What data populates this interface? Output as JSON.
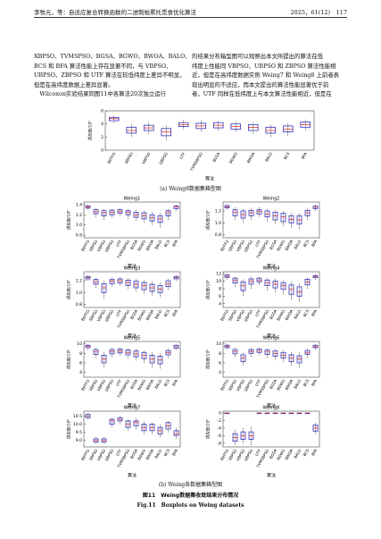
{
  "header": {
    "left": "李牧元，等：自适应复合转换函数的二进制帕累托觅食优化算法",
    "right": "2025，61(12)　117"
  },
  "body": {
    "left": [
      "XBPSO、TVMSPSO、BGSA、BGWO、BWOA、BALO、",
      "BCS 和 BFA 算法性能上存在显著不同，与 VBPSO、",
      "UBPSO、ZBPSO 和 UTF 算法在较低纬度上差异不明显，",
      "但是在高纬度数据上差异显著。",
      "　Wilcoxon实验结果同图11中各算法20次独立运行"
    ],
    "right": [
      "的结果分布箱型图可以观察出本文所提出的算法在低",
      "纬度上性能同 VBPSO、UBPSO 和 ZBPSO 算法性能相",
      "近，但是在高纬度数据实例 Weing7 和 Weing8 上前者表",
      "现出明显的不适应，而本文提出的算法性能显著优于前",
      "者，UTF 同样在低纬度上与本文算法性能相近，但是在"
    ]
  },
  "figure": {
    "caption_a": "(a) Weing8数据集箱型图",
    "caption_b": "(b) Weing各数据集箱型图",
    "caption_cn": "图11　Weing数据集收敛结果分布情况",
    "caption_en": "Fig.11　Boxplots on Weing datasets"
  },
  "chart_data": [
    {
      "type": "box",
      "ylabel": "适应度/10⁵",
      "xlabel": "算法",
      "color": "#3333bb",
      "categories": [
        "BEFFO",
        "SBPSO",
        "VBPSO",
        "QBPSO",
        "UTF",
        "TVMSBPSO",
        "BGSA",
        "BGWO",
        "BWOA",
        "BALO",
        "BCS",
        "BFA"
      ],
      "ylim": [
        0,
        6
      ],
      "yticks": [
        0,
        2,
        4,
        6
      ],
      "boxes": [
        [
          4.2,
          4.5,
          4.8,
          5.0,
          5.3
        ],
        [
          2.0,
          2.6,
          3.0,
          3.5,
          4.0
        ],
        [
          2.5,
          3.0,
          3.4,
          3.8,
          4.3
        ],
        [
          1.5,
          2.2,
          2.8,
          3.3,
          3.8
        ],
        [
          3.2,
          3.6,
          3.9,
          4.2,
          4.6
        ],
        [
          2.8,
          3.3,
          3.7,
          4.1,
          4.6
        ],
        [
          3.0,
          3.4,
          3.8,
          4.2,
          4.5
        ],
        [
          2.8,
          3.2,
          3.6,
          4.0,
          4.4
        ],
        [
          2.5,
          3.0,
          3.5,
          3.9,
          4.3
        ],
        [
          2.0,
          2.6,
          3.0,
          3.5,
          3.9
        ],
        [
          2.2,
          2.8,
          3.2,
          3.7,
          4.1
        ],
        [
          3.0,
          3.5,
          3.9,
          4.3,
          4.7
        ]
      ]
    },
    {
      "type": "box",
      "title": "Weing1",
      "ylabel": "适应度/10⁵",
      "xlabel": "算法",
      "color": "#3333bb",
      "categories": [
        "BEFFO",
        "SBPSO",
        "VBPSO",
        "QBPSO",
        "UTF",
        "TVMSBPSO",
        "BGSA",
        "BGWO",
        "BWOA",
        "BALO",
        "BCS",
        "BFA"
      ],
      "ylim": [
        0.75,
        1.45
      ],
      "yticks": [
        0.8,
        {
          "value": 1,
          "label": "1.0"
        },
        1.2,
        1.4
      ],
      "boxes": [
        [
          1.3,
          1.33,
          1.35,
          1.37,
          1.4
        ],
        [
          1.15,
          1.22,
          1.26,
          1.3,
          1.33
        ],
        [
          1.1,
          1.18,
          1.24,
          1.28,
          1.32
        ],
        [
          1.15,
          1.2,
          1.25,
          1.29,
          1.32
        ],
        [
          1.18,
          1.23,
          1.27,
          1.3,
          1.33
        ],
        [
          1.12,
          1.2,
          1.25,
          1.28,
          1.32
        ],
        [
          1.08,
          1.15,
          1.2,
          1.25,
          1.3
        ],
        [
          1.05,
          1.12,
          1.18,
          1.24,
          1.28
        ],
        [
          1.0,
          1.08,
          1.14,
          1.2,
          1.26
        ],
        [
          0.95,
          1.05,
          1.12,
          1.18,
          1.24
        ],
        [
          1.1,
          1.18,
          1.24,
          1.28,
          1.31
        ],
        [
          1.28,
          1.32,
          1.35,
          1.37,
          1.4
        ]
      ]
    },
    {
      "type": "box",
      "title": "Weing2",
      "ylabel": "适应度/10⁵",
      "xlabel": "算法",
      "color": "#3333bb",
      "categories": [
        "BEFFO",
        "SBPSO",
        "VBPSO",
        "QBPSO",
        "UTF",
        "TVMSBPSO",
        "BGSA",
        "BGWO",
        "BWOA",
        "BALO",
        "BCS",
        "BFA"
      ],
      "ylim": [
        0.75,
        1.35
      ],
      "yticks": [
        0.8,
        {
          "value": 1,
          "label": "1.0"
        },
        1.2
      ],
      "boxes": [
        [
          1.22,
          1.25,
          1.27,
          1.29,
          1.31
        ],
        [
          1.05,
          1.12,
          1.18,
          1.22,
          1.26
        ],
        [
          1.0,
          1.08,
          1.14,
          1.2,
          1.24
        ],
        [
          1.05,
          1.12,
          1.17,
          1.21,
          1.25
        ],
        [
          1.1,
          1.15,
          1.19,
          1.22,
          1.26
        ],
        [
          1.02,
          1.1,
          1.15,
          1.2,
          1.24
        ],
        [
          0.98,
          1.05,
          1.12,
          1.18,
          1.22
        ],
        [
          0.95,
          1.02,
          1.1,
          1.16,
          1.2
        ],
        [
          0.92,
          1.0,
          1.06,
          1.12,
          1.18
        ],
        [
          0.9,
          0.98,
          1.05,
          1.12,
          1.17
        ],
        [
          1.05,
          1.12,
          1.17,
          1.21,
          1.25
        ],
        [
          1.2,
          1.24,
          1.26,
          1.28,
          1.31
        ]
      ]
    },
    {
      "type": "box",
      "title": "Weing3",
      "ylabel": "适应度/10⁵",
      "xlabel": "算法",
      "color": "#3333bb",
      "categories": [
        "BEFFO",
        "SBPSO",
        "VBPSO",
        "QBPSO",
        "UTF",
        "TVMSBPSO",
        "BGSA",
        "BGWO",
        "BWOA",
        "BALO",
        "BCS",
        "BFA"
      ],
      "ylim": [
        0.75,
        1.35
      ],
      "yticks": [
        0.8,
        {
          "value": 1,
          "label": "1.0"
        },
        1.2
      ],
      "boxes": [
        [
          1.2,
          1.23,
          1.25,
          1.27,
          1.3
        ],
        [
          1.08,
          1.14,
          1.18,
          1.22,
          1.25
        ],
        [
          0.9,
          1.0,
          1.08,
          1.15,
          1.2
        ],
        [
          1.1,
          1.15,
          1.19,
          1.22,
          1.25
        ],
        [
          1.12,
          1.16,
          1.2,
          1.23,
          1.26
        ],
        [
          1.06,
          1.12,
          1.17,
          1.21,
          1.24
        ],
        [
          1.02,
          1.08,
          1.14,
          1.19,
          1.23
        ],
        [
          0.98,
          1.05,
          1.12,
          1.17,
          1.21
        ],
        [
          0.95,
          1.02,
          1.08,
          1.14,
          1.19
        ],
        [
          0.92,
          1.0,
          1.06,
          1.12,
          1.17
        ],
        [
          1.05,
          1.1,
          1.15,
          1.2,
          1.23
        ],
        [
          1.2,
          1.23,
          1.25,
          1.27,
          1.3
        ]
      ]
    },
    {
      "type": "box",
      "title": "Weing4",
      "ylabel": "适应度/10⁵",
      "xlabel": "算法",
      "color": "#3333bb",
      "categories": [
        "BEFFO",
        "SBPSO",
        "VBPSO",
        "QBPSO",
        "UTF",
        "TVMSBPSO",
        "BGSA",
        "BGWO",
        "BWOA",
        "BALO",
        "BCS",
        "BFA"
      ],
      "ylim": [
        3,
        12.5
      ],
      "yticks": [
        4,
        6,
        8,
        10,
        12
      ],
      "boxes": [
        [
          10.5,
          11,
          11.3,
          11.6,
          12
        ],
        [
          8.5,
          9.5,
          10.2,
          10.8,
          11.3
        ],
        [
          6,
          7.5,
          8.8,
          9.8,
          10.6
        ],
        [
          8,
          9.2,
          10,
          10.6,
          11.2
        ],
        [
          9,
          9.8,
          10.3,
          10.8,
          11.2
        ],
        [
          7.5,
          8.8,
          9.6,
          10.3,
          11
        ],
        [
          7,
          8.2,
          9.2,
          10,
          10.8
        ],
        [
          6.5,
          7.8,
          8.8,
          9.6,
          10.4
        ],
        [
          5,
          6.5,
          7.8,
          9,
          10
        ],
        [
          4.5,
          6,
          7.2,
          8.5,
          9.5
        ],
        [
          8,
          9,
          9.8,
          10.5,
          11
        ],
        [
          10.4,
          10.9,
          11.2,
          11.5,
          11.9
        ]
      ]
    },
    {
      "type": "box",
      "title": "Weing5",
      "ylabel": "适应度/10⁵",
      "xlabel": "算法",
      "color": "#3333bb",
      "categories": [
        "BEFFO",
        "SBPSO",
        "VBPSO",
        "QBPSO",
        "UTF",
        "TVMSBPSO",
        "BGSA",
        "BGWO",
        "BWOA",
        "BALO",
        "BCS",
        "BFA"
      ],
      "ylim": [
        3,
        10.5
      ],
      "yticks": [
        4,
        6,
        8,
        10
      ],
      "boxes": [
        [
          8.8,
          9.2,
          9.5,
          9.7,
          10
        ],
        [
          7,
          7.8,
          8.3,
          8.8,
          9.2
        ],
        [
          5,
          6,
          6.8,
          7.6,
          8.3
        ],
        [
          7.2,
          7.9,
          8.4,
          8.8,
          9.2
        ],
        [
          7.6,
          8.1,
          8.5,
          8.9,
          9.2
        ],
        [
          7,
          7.7,
          8.2,
          8.7,
          9.1
        ],
        [
          6.5,
          7.3,
          7.9,
          8.5,
          9
        ],
        [
          6,
          6.9,
          7.6,
          8.2,
          8.7
        ],
        [
          5,
          6,
          6.8,
          7.6,
          8.3
        ],
        [
          4.8,
          5.8,
          6.6,
          7.4,
          8.1
        ],
        [
          7,
          7.7,
          8.2,
          8.6,
          9
        ],
        [
          8.7,
          9.1,
          9.4,
          9.7,
          10
        ]
      ]
    },
    {
      "type": "box",
      "title": "Weing6",
      "ylabel": "适应度/10⁵",
      "xlabel": "算法",
      "color": "#3333bb",
      "categories": [
        "BEFFO",
        "SBPSO",
        "VBPSO",
        "QBPSO",
        "UTF",
        "TVMSBPSO",
        "BGSA",
        "BGWO",
        "BWOA",
        "BALO",
        "BCS",
        "BFA"
      ],
      "ylim": [
        3,
        10.5
      ],
      "yticks": [
        4,
        6,
        8,
        10
      ],
      "boxes": [
        [
          8.9,
          9.2,
          9.5,
          9.7,
          10
        ],
        [
          7.2,
          7.9,
          8.4,
          8.8,
          9.2
        ],
        [
          5.5,
          6.3,
          7,
          7.7,
          8.3
        ],
        [
          7.3,
          8,
          8.4,
          8.8,
          9.2
        ],
        [
          7.6,
          8.2,
          8.6,
          8.9,
          9.3
        ],
        [
          7,
          7.8,
          8.3,
          8.7,
          9.1
        ],
        [
          6.6,
          7.4,
          8,
          8.5,
          9
        ],
        [
          6.2,
          7,
          7.6,
          8.2,
          8.7
        ],
        [
          5.4,
          6.3,
          7,
          7.7,
          8.4
        ],
        [
          5,
          6,
          6.8,
          7.5,
          8.2
        ],
        [
          7,
          7.8,
          8.2,
          8.6,
          9
        ],
        [
          8.8,
          9.2,
          9.4,
          9.7,
          10
        ]
      ]
    },
    {
      "type": "box",
      "title": "Weing7",
      "ylabel": "适应度/10⁵",
      "xlabel": "算法",
      "color": "#3333bb",
      "categories": [
        "BEFFO",
        "SBPSO",
        "VBPSO",
        "QBPSO",
        "UTF",
        "TVMSBPSO",
        "BGSA",
        "BGWO",
        "BWOA",
        "BALO",
        "BCS",
        "BFA"
      ],
      "ylim": [
        8.6,
        10.8
      ],
      "yticks": [
        {
          "value": 9,
          "label": "9.0"
        },
        9.5,
        {
          "value": 10,
          "label": "10.0"
        },
        10.5
      ],
      "boxes": [
        [
          10.3,
          10.4,
          10.5,
          10.6,
          10.7
        ],
        [
          8.8,
          8.9,
          9,
          9.1,
          9.2
        ],
        [
          8.8,
          8.9,
          9,
          9.1,
          9.2
        ],
        [
          9.8,
          10,
          10.2,
          10.3,
          10.4
        ],
        [
          10,
          10.2,
          10.3,
          10.4,
          10.5
        ],
        [
          9.6,
          9.8,
          10,
          10.2,
          10.3
        ],
        [
          9.7,
          9.9,
          10.1,
          10.2,
          10.4
        ],
        [
          9.4,
          9.6,
          9.8,
          10,
          10.2
        ],
        [
          9.4,
          9.6,
          9.8,
          10,
          10.1
        ],
        [
          9.2,
          9.4,
          9.6,
          9.8,
          10
        ],
        [
          9.5,
          9.7,
          9.9,
          10.1,
          10.2
        ],
        [
          9.1,
          9.3,
          9.4,
          9.6,
          9.8
        ]
      ]
    },
    {
      "type": "box",
      "title": "Weing8",
      "ylabel": "适应度/10⁵",
      "xlabel": "算法",
      "color": "#3333bb",
      "categories": [
        "BEFFO",
        "SBPSO",
        "VBPSO",
        "QBPSO",
        "UTF",
        "TVMSBPSO",
        "BGSA",
        "BGWO",
        "BWOA",
        "BALO",
        "BCS",
        "BFA"
      ],
      "ylim": [
        -9,
        0.5
      ],
      "yticks": [
        0,
        -2,
        -4,
        -6,
        -8
      ],
      "boxes": [
        [
          0,
          0,
          0,
          0,
          0
        ],
        [
          -8.5,
          -7.5,
          -6.5,
          -5.5,
          -4.5
        ],
        [
          -8,
          -7,
          -6,
          -5,
          -4
        ],
        [
          -8.5,
          -7,
          -6,
          -5,
          -3.5
        ],
        [
          0,
          0,
          0,
          0,
          0
        ],
        [
          0,
          0,
          0,
          0,
          0
        ],
        [
          0,
          0,
          0,
          0,
          0
        ],
        [
          0,
          0,
          0,
          0,
          0
        ],
        [
          0,
          0,
          0,
          0,
          0
        ],
        [
          0,
          0,
          0,
          0,
          0
        ],
        [
          0,
          0,
          0,
          0,
          0
        ],
        [
          -5.5,
          -4.8,
          -4,
          -3.2,
          -2.5
        ]
      ]
    }
  ]
}
